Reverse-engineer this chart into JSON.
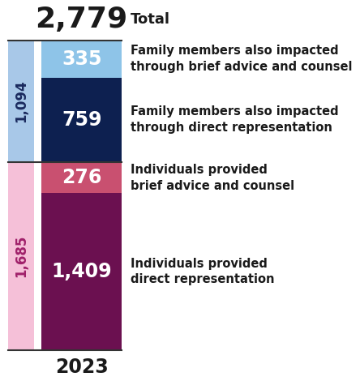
{
  "total": "2,779",
  "total_label": "Total",
  "year": "2023",
  "top_section": {
    "subtotal": "1,094",
    "subtotal_color": "#a8c8e8",
    "subtotal_text_color": "#1a2a5e",
    "segments": [
      {
        "value": 335,
        "label": "335",
        "color": "#8ec4e8",
        "text_color": "white",
        "desc": "Family members also impacted\nthrough brief advice and counsel"
      },
      {
        "value": 759,
        "label": "759",
        "color": "#0d2050",
        "text_color": "white",
        "desc": "Family members also impacted\nthrough direct representation"
      }
    ]
  },
  "bottom_section": {
    "subtotal": "1,685",
    "subtotal_color": "#f5c0d8",
    "subtotal_text_color": "#a0206a",
    "segments": [
      {
        "value": 276,
        "label": "276",
        "color": "#c95070",
        "text_color": "white",
        "desc": "Individuals provided\nbrief advice and counsel"
      },
      {
        "value": 1409,
        "label": "1,409",
        "color": "#6b1050",
        "text_color": "white",
        "desc": "Individuals provided\ndirect representation"
      }
    ]
  },
  "title_fontsize": 26,
  "total_label_fontsize": 13,
  "subtotal_fontsize": 12,
  "segment_label_fontsize": 17,
  "desc_fontsize": 10.5,
  "year_fontsize": 17,
  "bg_color": "#ffffff",
  "line_color": "#333333"
}
